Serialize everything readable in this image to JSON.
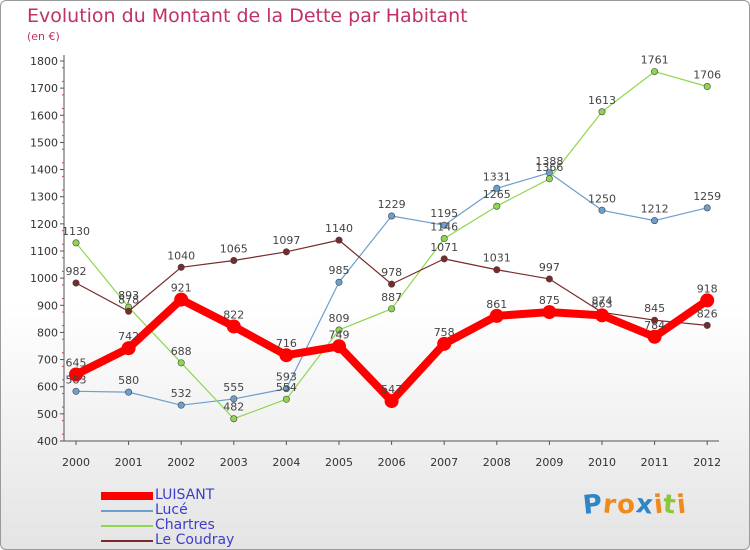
{
  "chart_data": {
    "type": "line",
    "title": "Evolution du Montant de la Dette par Habitant",
    "unit_label": "(en €)",
    "xlabel": "",
    "ylabel": "",
    "x": [
      "2000",
      "2001",
      "2002",
      "2003",
      "2004",
      "2005",
      "2006",
      "2007",
      "2008",
      "2009",
      "2010",
      "2011",
      "2012"
    ],
    "ylim": [
      400,
      1800
    ],
    "yticks": [
      400,
      500,
      600,
      700,
      800,
      900,
      1000,
      1100,
      1200,
      1300,
      1400,
      1500,
      1600,
      1700,
      1800
    ],
    "grid": false,
    "legend_position": "bottom-left",
    "series": [
      {
        "name": "LUISANT",
        "color": "#ff0000",
        "emphasis": true,
        "values": [
          645,
          742,
          921,
          822,
          716,
          749,
          547,
          758,
          861,
          875,
          863,
          784,
          918
        ]
      },
      {
        "name": "Lucé",
        "color": "#6a9fd0",
        "emphasis": false,
        "values": [
          583,
          580,
          532,
          555,
          593,
          985,
          1229,
          1195,
          1331,
          1388,
          1250,
          1212,
          1259
        ]
      },
      {
        "name": "Chartres",
        "color": "#8ed64e",
        "emphasis": false,
        "values": [
          1130,
          893,
          688,
          482,
          554,
          809,
          887,
          1146,
          1265,
          1366,
          1613,
          1761,
          1706
        ]
      },
      {
        "name": "Le Coudray",
        "color": "#7a2a2a",
        "emphasis": false,
        "values": [
          982,
          878,
          1040,
          1065,
          1097,
          1140,
          978,
          1071,
          1031,
          997,
          874,
          845,
          826
        ]
      }
    ]
  },
  "logo": {
    "text": "Proxiti",
    "colors": [
      "#2e86c8",
      "#f08a1c",
      "#f08a1c",
      "#2e86c8",
      "#f08a1c",
      "#8cc63e",
      "#f08a1c"
    ]
  }
}
